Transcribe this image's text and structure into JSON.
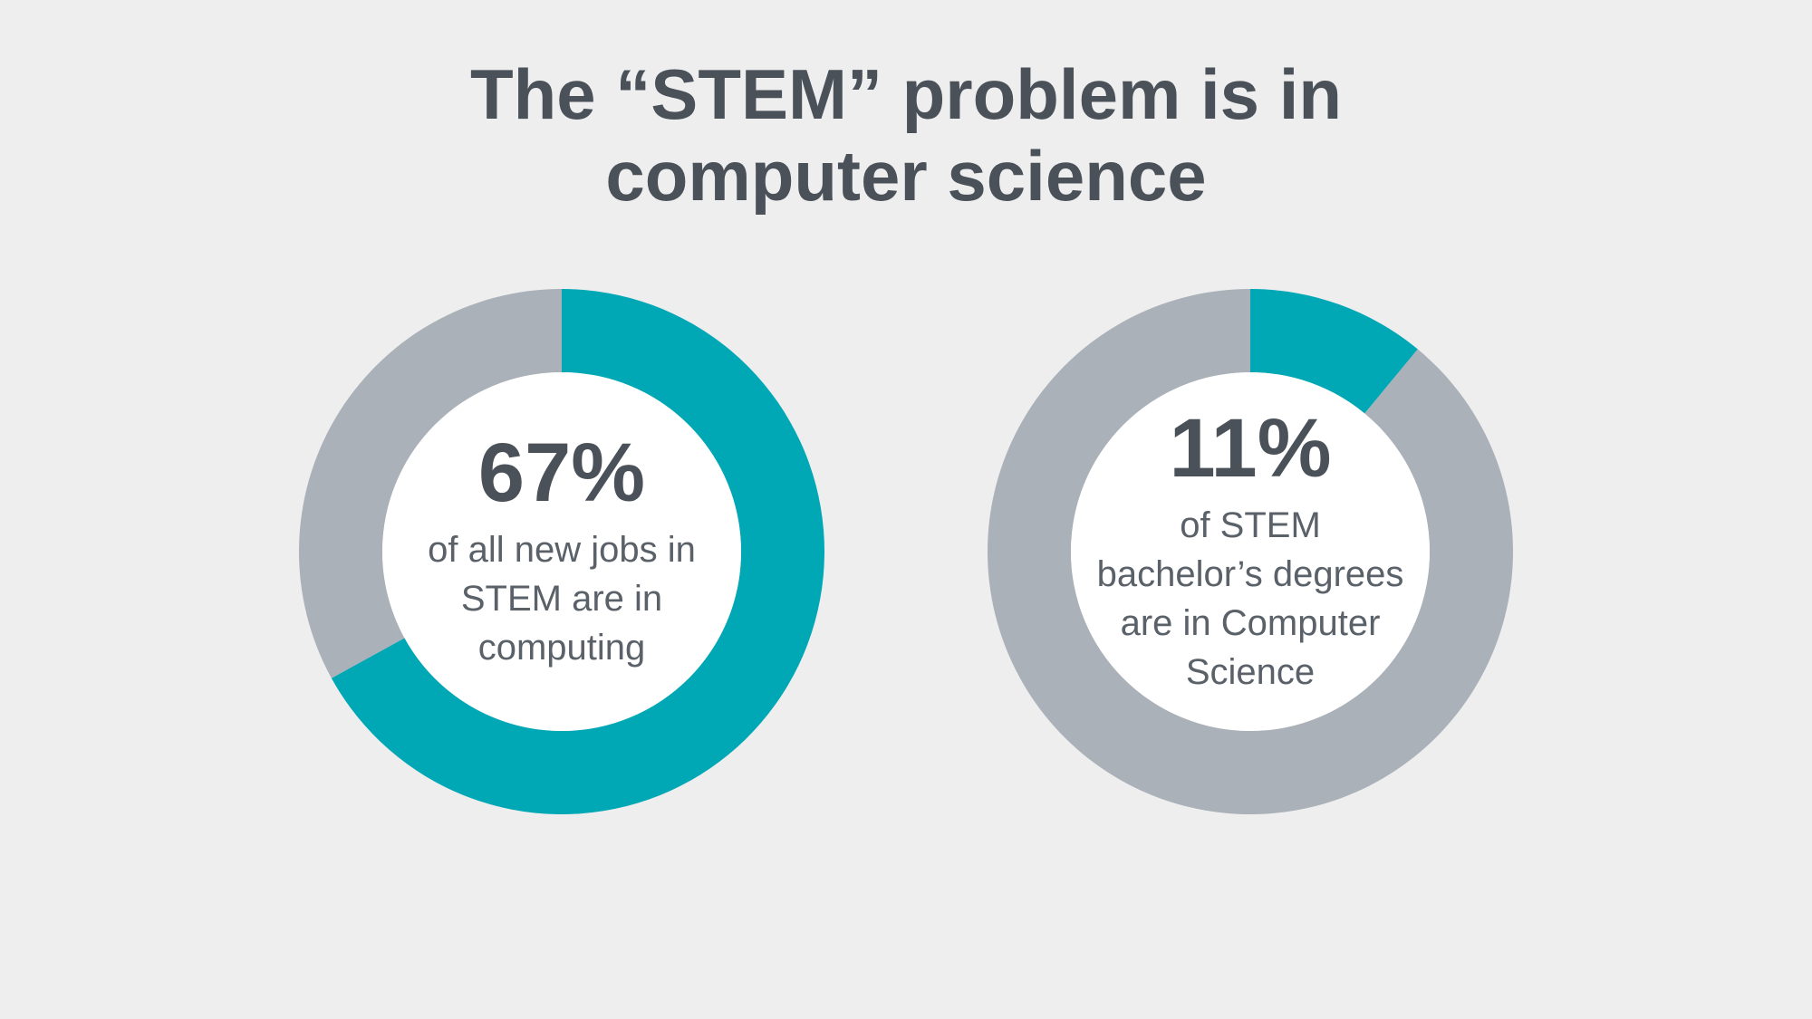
{
  "page": {
    "background_color": "#eeeeef",
    "title_line1": "The “STEM” problem is in",
    "title_line2": "computer science",
    "title_fontsize": 78,
    "title_color": "#4a5159"
  },
  "charts": [
    {
      "type": "donut",
      "percent_value": 67,
      "percent_label": "67%",
      "caption": "of all new jobs in STEM are in computing",
      "primary_color": "#00a7b5",
      "secondary_color": "#aab1b8",
      "inner_fill": "#ffffff",
      "outer_radius": 290,
      "inner_radius": 198,
      "percent_fontsize": 92,
      "percent_color": "#4a5159",
      "caption_fontsize": 40,
      "caption_color": "#5a6169"
    },
    {
      "type": "donut",
      "percent_value": 11,
      "percent_label": "11%",
      "caption": "of STEM bachelor’s degrees are in Computer Science",
      "primary_color": "#00a7b5",
      "secondary_color": "#aab1b8",
      "inner_fill": "#ffffff",
      "outer_radius": 290,
      "inner_radius": 198,
      "percent_fontsize": 92,
      "percent_color": "#4a5159",
      "caption_fontsize": 40,
      "caption_color": "#5a6169"
    }
  ]
}
